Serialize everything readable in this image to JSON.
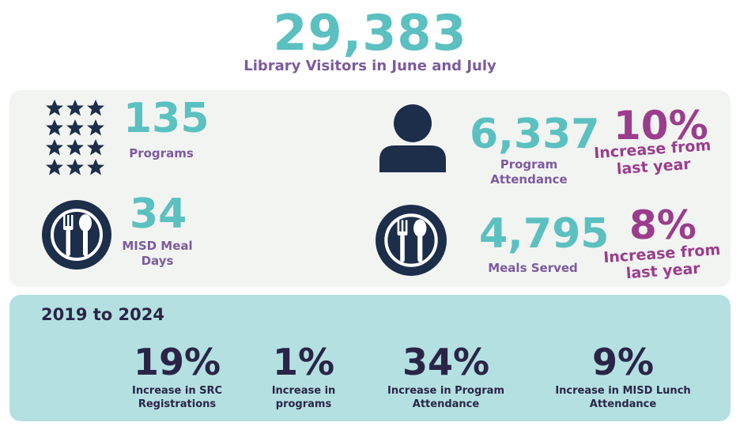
{
  "hero": {
    "number": "29,383",
    "caption": "Library Visitors in June and July"
  },
  "programs": {
    "value": "135",
    "label": "Programs",
    "icon": "stars-grid-icon"
  },
  "meal_days": {
    "value": "34",
    "label_line1": "MISD Meal",
    "label_line2": "Days",
    "icon": "plate-fork-spoon-icon"
  },
  "attendance": {
    "value": "6,337",
    "label_line1": "Program",
    "label_line2": "Attendance",
    "icon": "person-icon",
    "change_pct": "10%",
    "change_line1": "Increase from",
    "change_line2": "last year"
  },
  "meals": {
    "value": "4,795",
    "label": "Meals Served",
    "icon": "plate-fork-spoon-icon",
    "change_pct": "8%",
    "change_line1": "Increase from",
    "change_line2": "last year"
  },
  "trends": {
    "heading": "2019 to 2024",
    "items": [
      {
        "pct": "19%",
        "line1": "Increase in SRC",
        "line2": "Registrations"
      },
      {
        "pct": "1%",
        "line1": "Increase in",
        "line2": "programs"
      },
      {
        "pct": "34%",
        "line1": "Increase in Program",
        "line2": "Attendance"
      },
      {
        "pct": "9%",
        "line1": "Increase in MISD Lunch",
        "line2": "Attendance"
      }
    ]
  },
  "colors": {
    "teal": "#5bc0c0",
    "navy": "#1d2e4a",
    "purple": "#7c5b9e",
    "magenta": "#9b3d8c",
    "trend_bg": "#b4e0e1",
    "panel_bg": "#f2f4f2"
  }
}
